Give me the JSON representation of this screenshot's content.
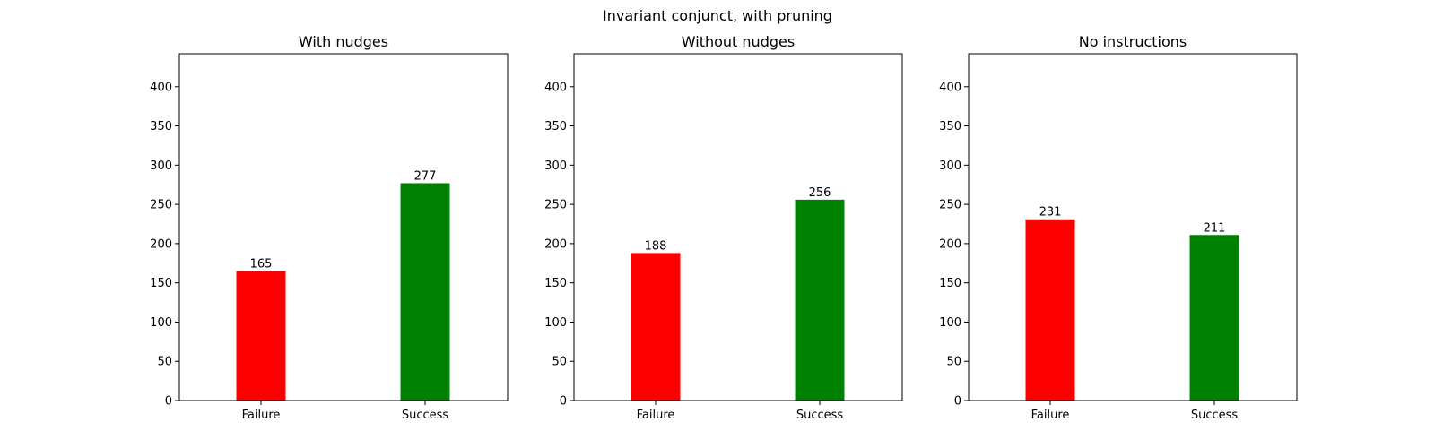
{
  "chart_data": {
    "title": "Invariant conjunct, with pruning",
    "charts": [
      {
        "type": "bar",
        "title": "With nudges",
        "categories": [
          "Failure",
          "Success"
        ],
        "values": [
          165,
          277
        ],
        "colors": [
          "#ff0000",
          "#008000"
        ],
        "ylim": [
          0,
          442
        ],
        "yticks": [
          0,
          50,
          100,
          150,
          200,
          250,
          300,
          350,
          400
        ],
        "xlabel": "",
        "ylabel": "",
        "grid": false
      },
      {
        "type": "bar",
        "title": "Without nudges",
        "categories": [
          "Failure",
          "Success"
        ],
        "values": [
          188,
          256
        ],
        "colors": [
          "#ff0000",
          "#008000"
        ],
        "ylim": [
          0,
          442
        ],
        "yticks": [
          0,
          50,
          100,
          150,
          200,
          250,
          300,
          350,
          400
        ],
        "xlabel": "",
        "ylabel": "",
        "grid": false
      },
      {
        "type": "bar",
        "title": "No instructions",
        "categories": [
          "Failure",
          "Success"
        ],
        "values": [
          231,
          211
        ],
        "colors": [
          "#ff0000",
          "#008000"
        ],
        "ylim": [
          0,
          442
        ],
        "yticks": [
          0,
          50,
          100,
          150,
          200,
          250,
          300,
          350,
          400
        ],
        "xlabel": "",
        "ylabel": "",
        "grid": false
      }
    ]
  }
}
